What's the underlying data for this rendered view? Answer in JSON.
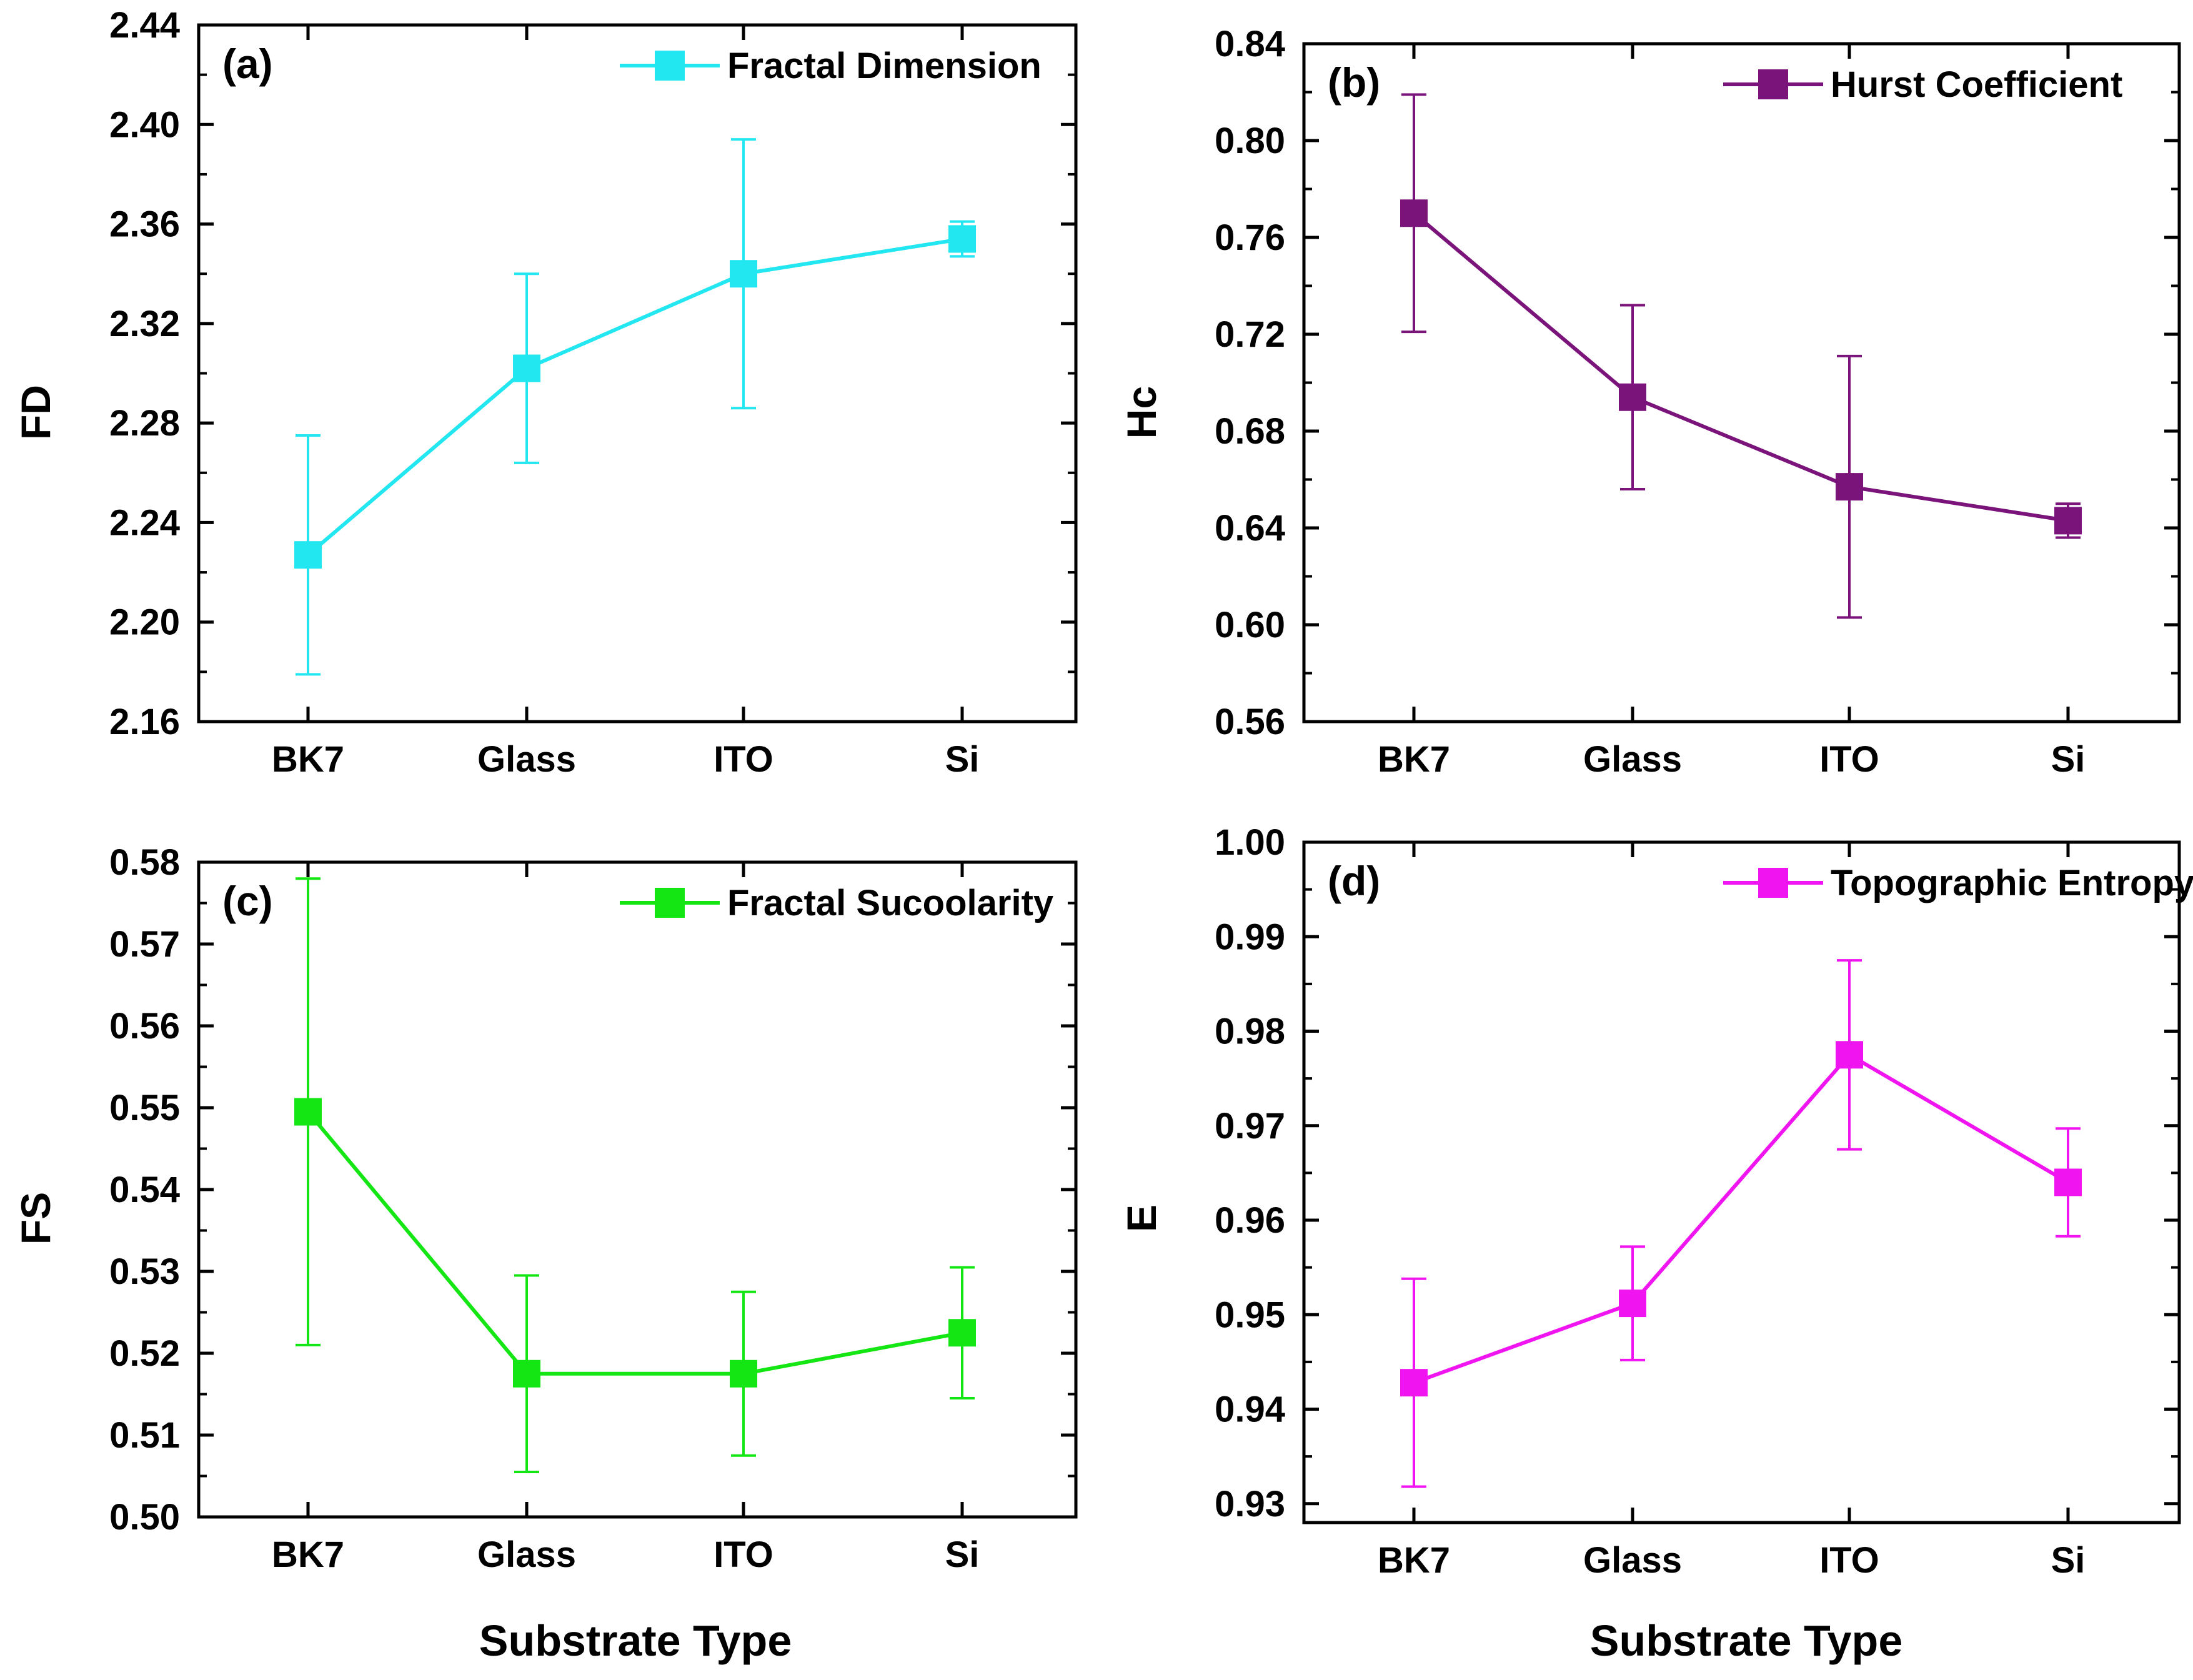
{
  "figure": {
    "x_title": "Substrate Type"
  },
  "chart_data": [
    {
      "type": "line",
      "panel": "(a)",
      "legend": "Fractal Dimension",
      "ylabel": "FD",
      "xlabel": "Substrate Type",
      "color": "#22e6f0",
      "categories": [
        "BK7",
        "Glass",
        "ITO",
        "Si"
      ],
      "values": [
        2.227,
        2.302,
        2.34,
        2.354
      ],
      "errors": [
        0.048,
        0.038,
        0.054,
        0.007
      ],
      "ylim": [
        2.16,
        2.44
      ],
      "yticks": [
        "2.16",
        "2.20",
        "2.24",
        "2.28",
        "2.32",
        "2.36",
        "2.40",
        "2.44"
      ],
      "legend_position": "top-right"
    },
    {
      "type": "line",
      "panel": "(b)",
      "legend": "Hurst Coefficient",
      "ylabel": "Hc",
      "xlabel": "Substrate Type",
      "color": "#7a137a",
      "categories": [
        "BK7",
        "Glass",
        "ITO",
        "Si"
      ],
      "values": [
        0.77,
        0.694,
        0.657,
        0.643
      ],
      "errors": [
        0.049,
        0.038,
        0.054,
        0.007
      ],
      "ylim": [
        0.56,
        0.84
      ],
      "yticks": [
        "0.56",
        "0.60",
        "0.64",
        "0.68",
        "0.72",
        "0.76",
        "0.80",
        "0.84"
      ],
      "legend_position": "top-right"
    },
    {
      "type": "line",
      "panel": "(c)",
      "legend": "Fractal Sucoolarity",
      "ylabel": "FS",
      "xlabel": "Substrate Type",
      "color": "#14e614",
      "categories": [
        "BK7",
        "Glass",
        "ITO",
        "Si"
      ],
      "values": [
        0.5495,
        0.5175,
        0.5175,
        0.5225
      ],
      "errors": [
        0.0285,
        0.012,
        0.01,
        0.008
      ],
      "ylim": [
        0.5,
        0.58
      ],
      "yticks": [
        "0.50",
        "0.51",
        "0.52",
        "0.53",
        "0.54",
        "0.55",
        "0.56",
        "0.57",
        "0.58"
      ],
      "legend_position": "top-right"
    },
    {
      "type": "line",
      "panel": "(d)",
      "legend": "Topographic Entropy",
      "ylabel": "E",
      "xlabel": "Substrate Type",
      "color": "#f014f0",
      "categories": [
        "BK7",
        "Glass",
        "ITO",
        "Si"
      ],
      "values": [
        0.9428,
        0.9512,
        0.9775,
        0.964
      ],
      "errors": [
        0.011,
        0.006,
        0.01,
        0.0057
      ],
      "ylim": [
        0.928,
        1.0
      ],
      "yticks": [
        "0.93",
        "0.94",
        "0.95",
        "0.96",
        "0.97",
        "0.98",
        "0.99",
        "1.00"
      ],
      "legend_position": "top-right"
    }
  ]
}
